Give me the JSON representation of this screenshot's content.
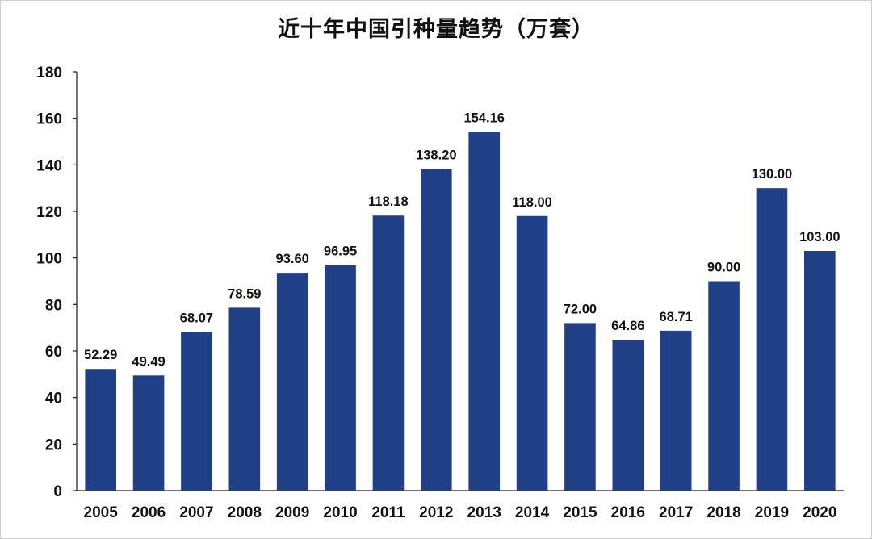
{
  "chart_data": {
    "type": "bar",
    "title": "近十年中国引种量趋势（万套）",
    "xlabel": "",
    "ylabel": "",
    "categories": [
      "2005",
      "2006",
      "2007",
      "2008",
      "2009",
      "2010",
      "2011",
      "2012",
      "2013",
      "2014",
      "2015",
      "2016",
      "2017",
      "2018",
      "2019",
      "2020"
    ],
    "values": [
      52.29,
      49.49,
      68.07,
      78.59,
      93.6,
      96.95,
      118.18,
      138.2,
      154.16,
      118.0,
      72.0,
      64.86,
      68.71,
      90.0,
      130.0,
      103.0
    ],
    "value_labels": [
      "52.29",
      "49.49",
      "68.07",
      "78.59",
      "93.60",
      "96.95",
      "118.18",
      "138.20",
      "154.16",
      "118.00",
      "72.00",
      "64.86",
      "68.71",
      "90.00",
      "130.00",
      "103.00"
    ],
    "ylim": [
      0,
      180
    ],
    "yticks": [
      0,
      20,
      40,
      60,
      80,
      100,
      120,
      140,
      160,
      180
    ],
    "grid": false,
    "legend": "none",
    "colors": {
      "bar": "#1f3f86",
      "axis": "#1a1a1a",
      "text": "#111111"
    }
  }
}
